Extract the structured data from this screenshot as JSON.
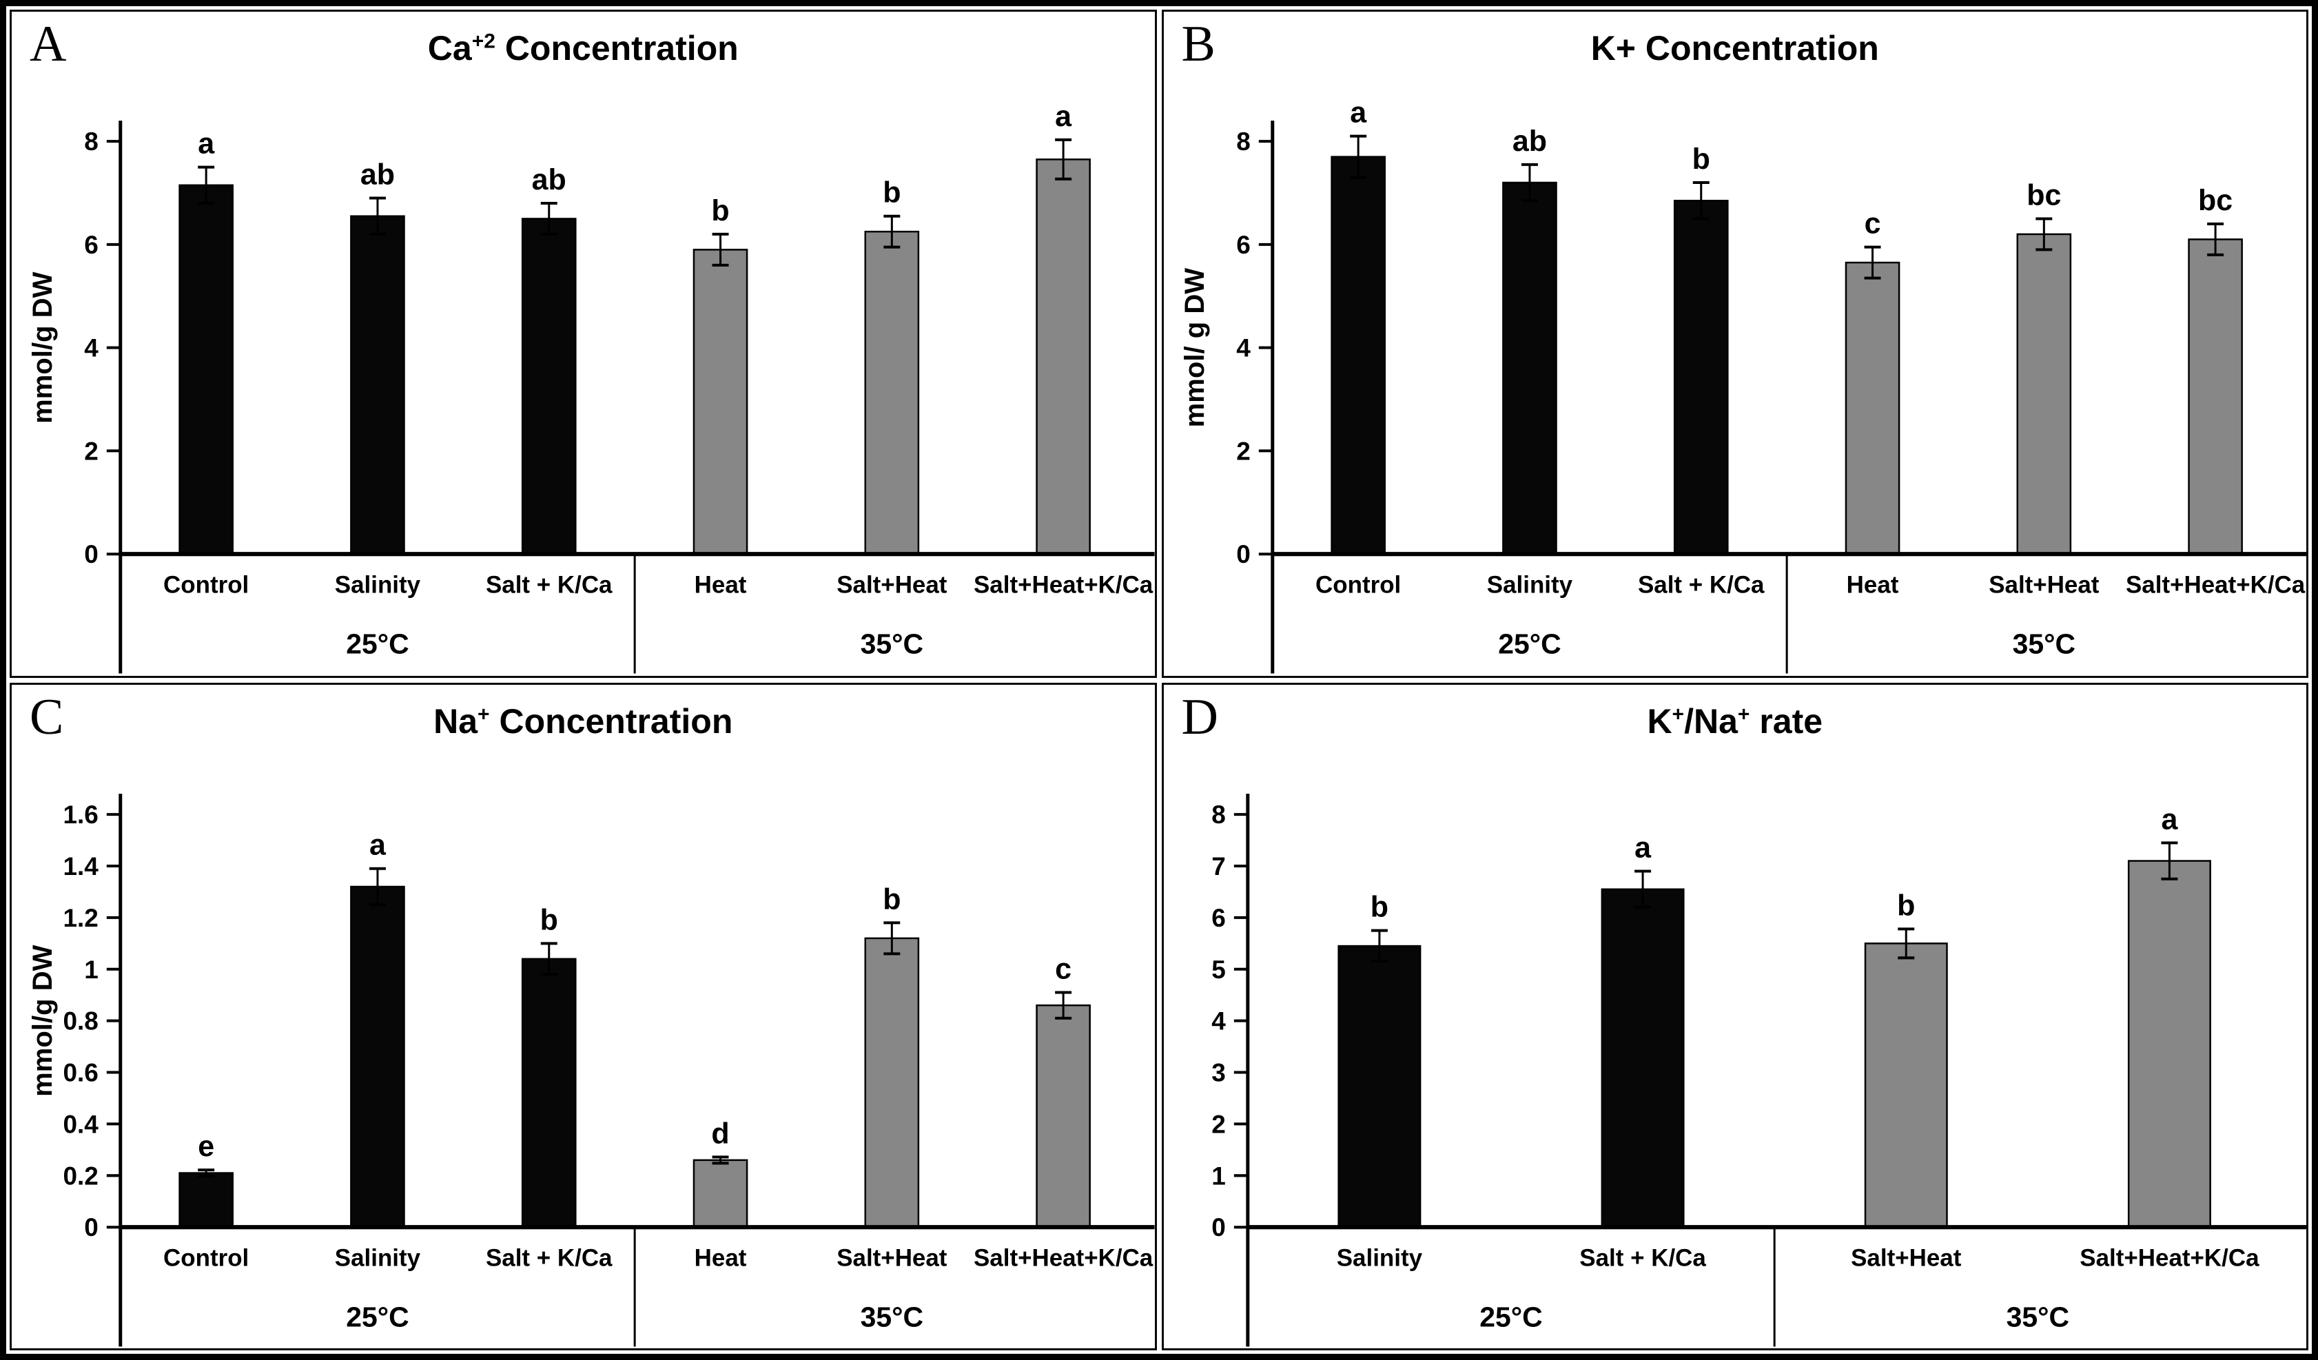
{
  "figure": {
    "panel_count": 4,
    "bar_colors": {
      "group_25C": "#070707",
      "group_35C": "#878787"
    },
    "background": "#ffffff",
    "border_color": "#000000"
  },
  "chart_data": [
    {
      "panel_letter": "A",
      "type": "bar",
      "title_text": "Ca+2 Concentration",
      "title_parts": [
        {
          "text": "Ca"
        },
        {
          "text": "+2",
          "sup": true
        },
        {
          "text": " Concentration"
        }
      ],
      "ylabel": "mmol/g DW",
      "ylim": [
        0,
        8
      ],
      "yticks": [
        0,
        2,
        4,
        6,
        8
      ],
      "ytick_labels": [
        "0",
        "2",
        "4",
        "6",
        "8"
      ],
      "categories": [
        "Control",
        "Salinity",
        "Salt + K/Ca",
        "Heat",
        "Salt+Heat",
        "Salt+Heat+K/Ca"
      ],
      "values": [
        7.15,
        6.55,
        6.5,
        5.9,
        6.25,
        7.65
      ],
      "errors": [
        0.35,
        0.35,
        0.3,
        0.3,
        0.3,
        0.38
      ],
      "sig_letters": [
        "a",
        "ab",
        "ab",
        "b",
        "b",
        "a"
      ],
      "groups": [
        {
          "label": "25°C",
          "count": 3,
          "color": "#070707"
        },
        {
          "label": "35°C",
          "count": 3,
          "color": "#878787"
        }
      ],
      "grid": false,
      "legend": "none"
    },
    {
      "panel_letter": "B",
      "type": "bar",
      "title_text": "K+ Concentration",
      "title_parts": [
        {
          "text": "K+ Concentration"
        }
      ],
      "ylabel": "mmol/ g DW",
      "ylim": [
        0,
        8
      ],
      "yticks": [
        0,
        2,
        4,
        6,
        8
      ],
      "ytick_labels": [
        "0",
        "2",
        "4",
        "6",
        "8"
      ],
      "categories": [
        "Control",
        "Salinity",
        "Salt + K/Ca",
        "Heat",
        "Salt+Heat",
        "Salt+Heat+K/Ca"
      ],
      "values": [
        7.7,
        7.2,
        6.85,
        5.65,
        6.2,
        6.1
      ],
      "errors": [
        0.4,
        0.35,
        0.35,
        0.3,
        0.3,
        0.3
      ],
      "sig_letters": [
        "a",
        "ab",
        "b",
        "c",
        "bc",
        "bc"
      ],
      "groups": [
        {
          "label": "25°C",
          "count": 3,
          "color": "#070707"
        },
        {
          "label": "35°C",
          "count": 3,
          "color": "#878787"
        }
      ],
      "grid": false,
      "legend": "none"
    },
    {
      "panel_letter": "C",
      "type": "bar",
      "title_text": "Na+ Concentration",
      "title_parts": [
        {
          "text": "Na"
        },
        {
          "text": "+",
          "sup": true
        },
        {
          "text": " Concentration"
        }
      ],
      "ylabel": "mmol/g DW",
      "ylim": [
        0,
        1.6
      ],
      "yticks": [
        0,
        0.2,
        0.4,
        0.6,
        0.8,
        1,
        1.2,
        1.4,
        1.6
      ],
      "ytick_labels": [
        "0",
        "0.2",
        "0.4",
        "0.6",
        "0.8",
        "1",
        "1.2",
        "1.4",
        "1.6"
      ],
      "categories": [
        "Control",
        "Salinity",
        "Salt + K/Ca",
        "Heat",
        "Salt+Heat",
        "Salt+Heat+K/Ca"
      ],
      "values": [
        0.21,
        1.32,
        1.04,
        0.26,
        1.12,
        0.86
      ],
      "errors": [
        0.012,
        0.07,
        0.06,
        0.012,
        0.06,
        0.05
      ],
      "sig_letters": [
        "e",
        "a",
        "b",
        "d",
        "b",
        "c"
      ],
      "groups": [
        {
          "label": "25°C",
          "count": 3,
          "color": "#070707"
        },
        {
          "label": "35°C",
          "count": 3,
          "color": "#878787"
        }
      ],
      "grid": false,
      "legend": "none"
    },
    {
      "panel_letter": "D",
      "type": "bar",
      "title_text": "K+/Na+ rate",
      "title_parts": [
        {
          "text": "K"
        },
        {
          "text": "+",
          "sup": true
        },
        {
          "text": "/Na"
        },
        {
          "text": "+",
          "sup": true
        },
        {
          "text": " rate"
        }
      ],
      "ylabel": "",
      "ylim": [
        0,
        8
      ],
      "yticks": [
        0,
        1,
        2,
        3,
        4,
        5,
        6,
        7,
        8
      ],
      "ytick_labels": [
        "0",
        "1",
        "2",
        "3",
        "4",
        "5",
        "6",
        "7",
        "8"
      ],
      "categories": [
        "Salinity",
        "Salt + K/Ca",
        "Salt+Heat",
        "Salt+Heat+K/Ca"
      ],
      "values": [
        5.45,
        6.55,
        5.5,
        7.1
      ],
      "errors": [
        0.3,
        0.35,
        0.28,
        0.35
      ],
      "sig_letters": [
        "b",
        "a",
        "b",
        "a"
      ],
      "groups": [
        {
          "label": "25°C",
          "count": 2,
          "color": "#070707"
        },
        {
          "label": "35°C",
          "count": 2,
          "color": "#878787"
        }
      ],
      "grid": false,
      "legend": "none"
    }
  ]
}
